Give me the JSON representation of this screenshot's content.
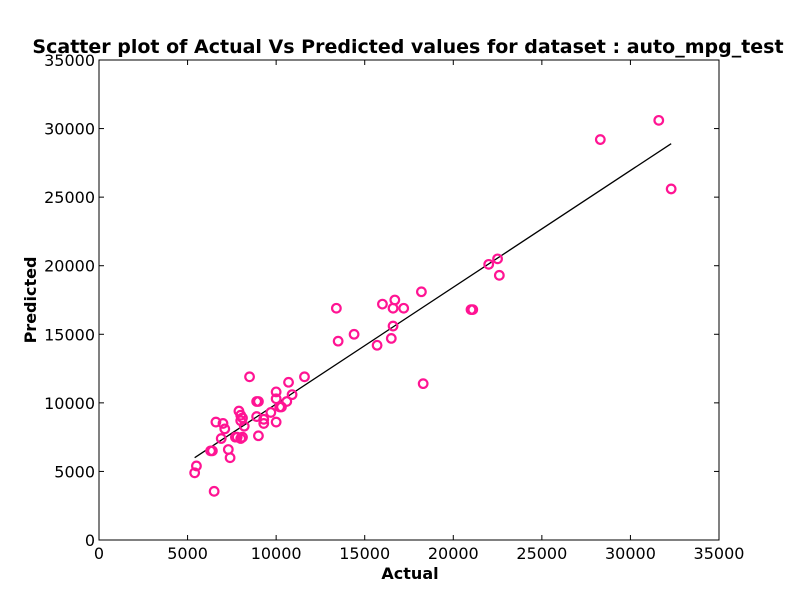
{
  "chart_data": {
    "type": "scatter",
    "title": "Scatter plot of Actual Vs Predicted values for dataset : auto_mpg_test",
    "xlabel": "Actual",
    "ylabel": "Predicted",
    "xlim": [
      0,
      35000
    ],
    "ylim": [
      0,
      35000
    ],
    "x_ticks": [
      "0",
      "5000",
      "10000",
      "15000",
      "20000",
      "25000",
      "30000",
      "35000"
    ],
    "y_ticks": [
      "0",
      "5000",
      "10000",
      "15000",
      "20000",
      "25000",
      "30000",
      "35000"
    ],
    "grid": false,
    "marker_color": "#ff1493",
    "fit_line_color": "#000000",
    "points": [
      [
        5400,
        4900
      ],
      [
        5500,
        5400
      ],
      [
        6300,
        6500
      ],
      [
        6400,
        6500
      ],
      [
        6500,
        3550
      ],
      [
        6600,
        8600
      ],
      [
        6900,
        7400
      ],
      [
        7000,
        8500
      ],
      [
        7100,
        8100
      ],
      [
        7300,
        6600
      ],
      [
        7400,
        6000
      ],
      [
        7700,
        7500
      ],
      [
        7800,
        7500
      ],
      [
        7900,
        9400
      ],
      [
        8000,
        7400
      ],
      [
        8000,
        9100
      ],
      [
        8000,
        8700
      ],
      [
        8100,
        8900
      ],
      [
        8100,
        7500
      ],
      [
        8200,
        8300
      ],
      [
        8500,
        11900
      ],
      [
        8900,
        9000
      ],
      [
        8900,
        10100
      ],
      [
        9000,
        10100
      ],
      [
        9000,
        7600
      ],
      [
        9300,
        8500
      ],
      [
        9300,
        8800
      ],
      [
        9700,
        9300
      ],
      [
        10000,
        10800
      ],
      [
        10000,
        10300
      ],
      [
        10000,
        8600
      ],
      [
        10200,
        9700
      ],
      [
        10300,
        9700
      ],
      [
        10600,
        10100
      ],
      [
        10700,
        11500
      ],
      [
        10900,
        10600
      ],
      [
        11600,
        11900
      ],
      [
        13400,
        16900
      ],
      [
        13500,
        14500
      ],
      [
        14400,
        15000
      ],
      [
        15700,
        14200
      ],
      [
        16000,
        17200
      ],
      [
        16500,
        14700
      ],
      [
        16600,
        15600
      ],
      [
        16600,
        16900
      ],
      [
        16700,
        17500
      ],
      [
        17200,
        16900
      ],
      [
        18200,
        18100
      ],
      [
        18300,
        11400
      ],
      [
        21000,
        16800
      ],
      [
        21100,
        16800
      ],
      [
        22000,
        20100
      ],
      [
        22500,
        20500
      ],
      [
        22600,
        19300
      ],
      [
        28300,
        29200
      ],
      [
        31600,
        30600
      ],
      [
        32300,
        25600
      ]
    ],
    "fit_line": [
      [
        5400,
        6000
      ],
      [
        32300,
        28900
      ]
    ]
  }
}
